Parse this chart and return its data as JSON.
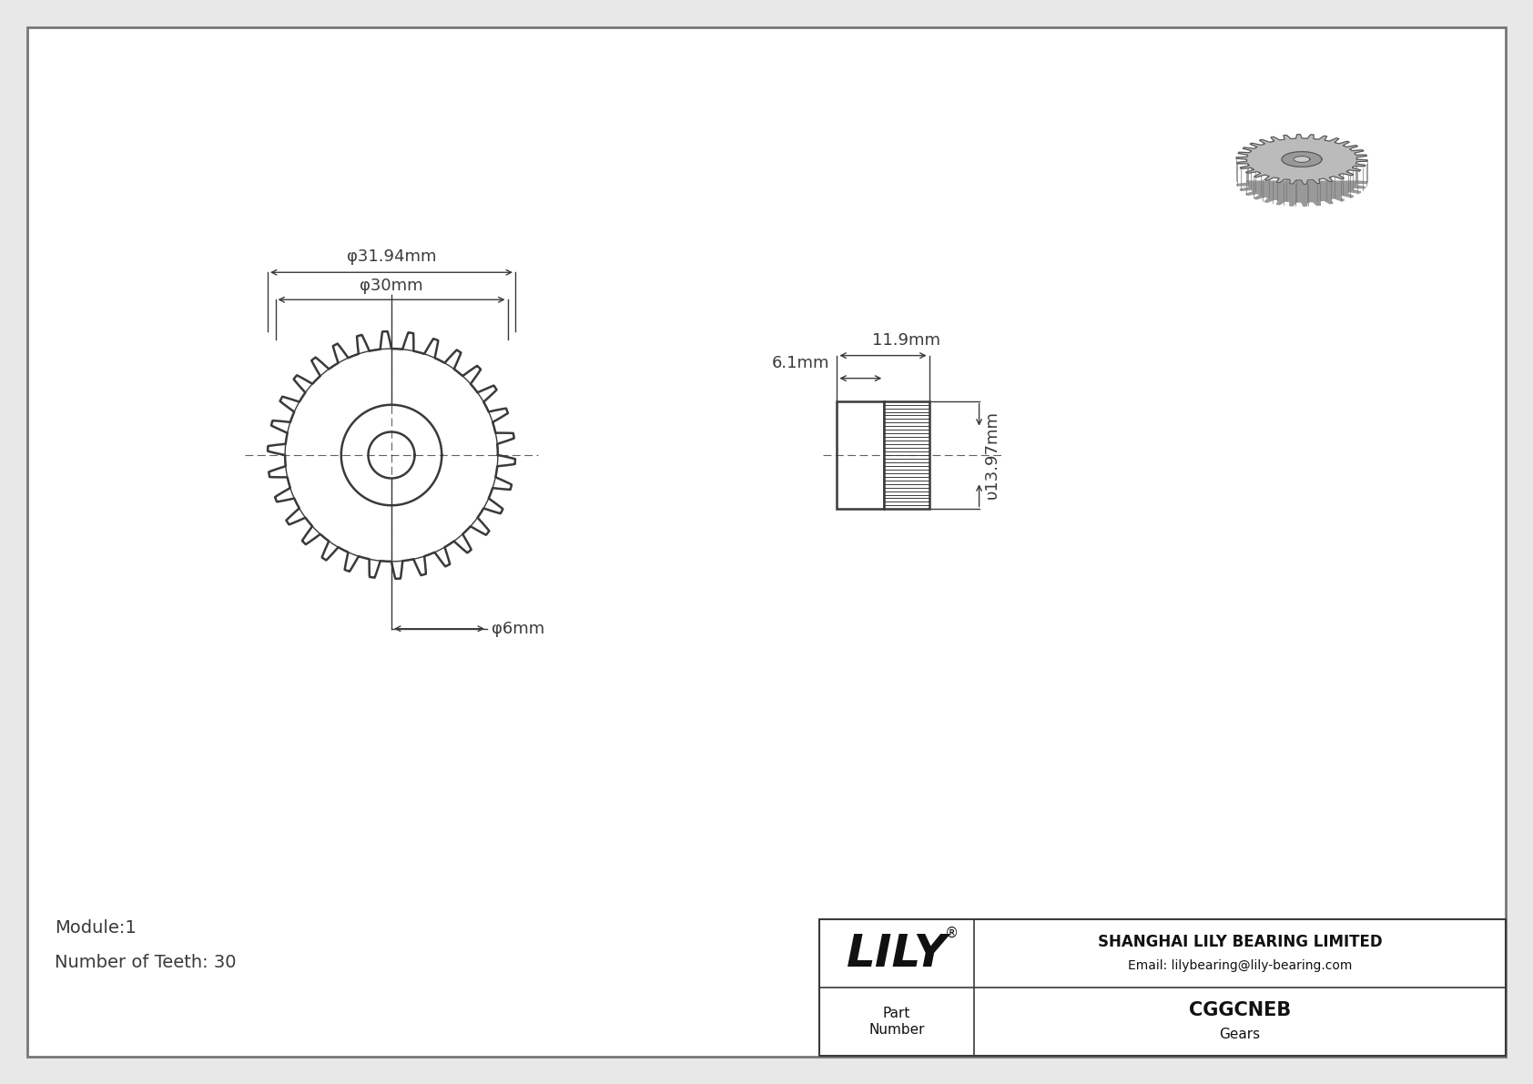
{
  "bg_color": "#e8e8e8",
  "drawing_bg": "#ffffff",
  "line_color": "#3a3a3a",
  "dim_color": "#3a3a3a",
  "company": "SHANGHAI LILY BEARING LIMITED",
  "email": "Email: lilybearing@lily-bearing.com",
  "part_number": "CGGCNEB",
  "part_type": "Gears",
  "module": "Module:1",
  "teeth": "Number of Teeth: 30",
  "dim_outer": "φ31.94mm",
  "dim_pitch": "φ30mm",
  "dim_bore": "φ6mm",
  "dim_width_total": "11.9mm",
  "dim_hub_w": "6.1mm",
  "dim_height": "υ13.97mm",
  "num_teeth": 30
}
